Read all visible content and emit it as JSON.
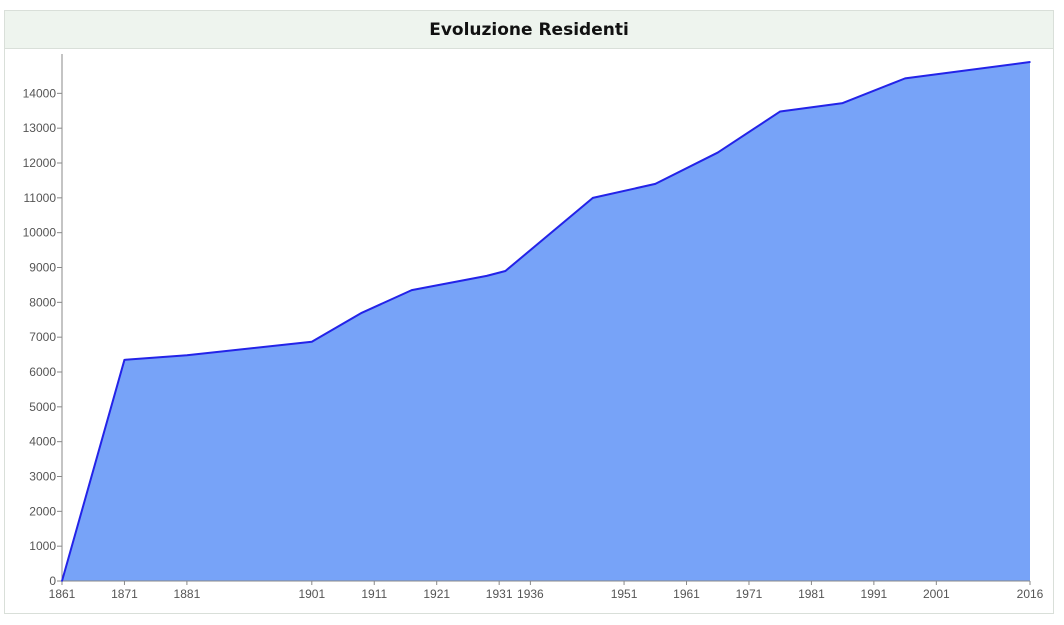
{
  "panel": {
    "title": "Evoluzione Residenti"
  },
  "colors": {
    "area_fill": "#77a3f8",
    "line": "#2323e8",
    "axis": "#888888",
    "title_bg": "#eef4ee"
  },
  "chart_data": {
    "type": "area",
    "title": "Evoluzione Residenti",
    "xlabel": "",
    "ylabel": "",
    "xlim": [
      1861,
      2016
    ],
    "ylim": [
      0,
      14900
    ],
    "x_ticks": [
      1861,
      1871,
      1881,
      1901,
      1911,
      1921,
      1931,
      1936,
      1951,
      1961,
      1971,
      1981,
      1991,
      2001,
      2016
    ],
    "y_ticks": [
      0,
      1000,
      2000,
      3000,
      4000,
      5000,
      6000,
      7000,
      8000,
      9000,
      10000,
      11000,
      12000,
      13000,
      14000
    ],
    "grid": false,
    "legend": "none",
    "series": [
      {
        "x": [
          1861,
          1871,
          1881,
          1901,
          1909,
          1917,
          1929,
          1932,
          1946,
          1956,
          1966,
          1976,
          1986,
          1996,
          2016
        ],
        "values": [
          0,
          6350,
          6480,
          6870,
          7700,
          8350,
          8760,
          8900,
          11000,
          11400,
          12300,
          13480,
          13720,
          14430,
          14900
        ]
      }
    ]
  }
}
